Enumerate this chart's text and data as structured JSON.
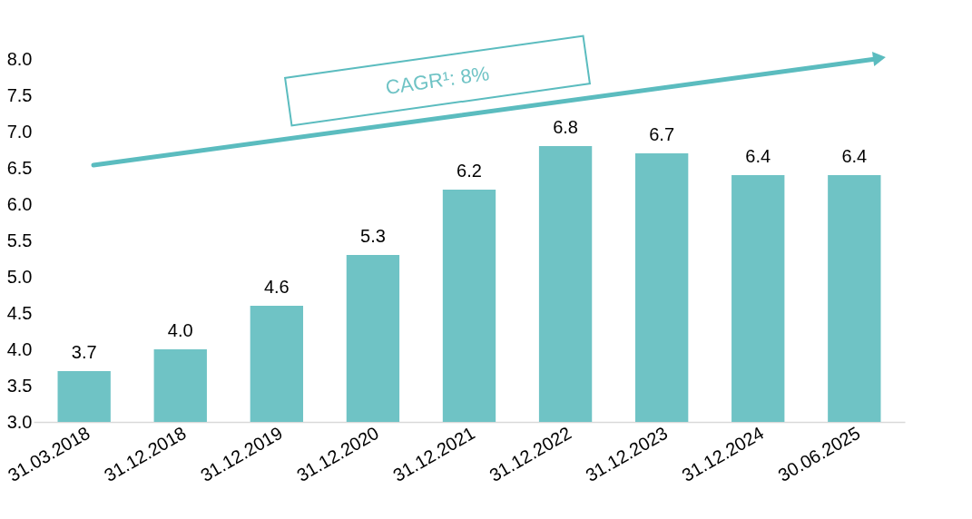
{
  "chart_data": {
    "type": "bar",
    "categories": [
      "31.03.2018",
      "31.12.2018",
      "31.12.2019",
      "31.12.2020",
      "31.12.2021",
      "31.12.2022",
      "31.12.2023",
      "31.12.2024",
      "30.06.2025"
    ],
    "values": [
      3.7,
      4.0,
      4.6,
      5.3,
      6.2,
      6.8,
      6.7,
      6.4,
      6.4
    ],
    "color": "#6fc3c5",
    "ylim": [
      3.0,
      8.0
    ],
    "yticks": [
      {
        "value": 3.0,
        "label": "3.0"
      },
      {
        "value": 3.5,
        "label": "3.5"
      },
      {
        "value": 4.0,
        "label": "4.0"
      },
      {
        "value": 4.5,
        "label": "4.5"
      },
      {
        "value": 5.0,
        "label": "5.0"
      },
      {
        "value": 5.5,
        "label": "5.5"
      },
      {
        "value": 6.0,
        "label": "6.0"
      },
      {
        "value": 6.5,
        "label": "6.5"
      },
      {
        "value": 7.0,
        "label": "7.0"
      },
      {
        "value": 7.5,
        "label": "7.5"
      },
      {
        "value": 8.0,
        "label": "8.0"
      }
    ],
    "value_labels": [
      "3.7",
      "4.0",
      "4.6",
      "5.3",
      "6.2",
      "6.8",
      "6.7",
      "6.4",
      "6.4"
    ],
    "grid": false,
    "annotations": [
      "CAGR¹: 8%"
    ]
  }
}
